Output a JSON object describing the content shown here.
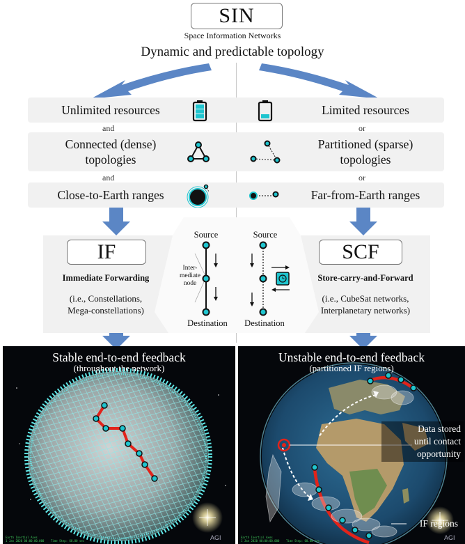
{
  "header": {
    "title": "SIN",
    "subtitle": "Space Information Networks",
    "topology": "Dynamic and predictable topology"
  },
  "conditions": {
    "left": [
      "Unlimited resources",
      "Connected (dense)\ntopologies",
      "Close-to-Earth ranges"
    ],
    "right": [
      "Limited resources",
      "Partitioned (sparse)\ntopologies",
      "Far-from-Earth ranges"
    ],
    "left_conj": [
      "and",
      "and"
    ],
    "right_conj": [
      "or",
      "or"
    ]
  },
  "icons": [
    "battery-full-icon",
    "battery-low-icon",
    "triangle-graph-icon",
    "partitioned-graph-icon",
    "earth-close-icon",
    "earth-far-icon"
  ],
  "if_panel": {
    "acronym": "IF",
    "name": "Immediate Forwarding",
    "examples": "(i.e., Constellations,\nMega-constellations)",
    "source": "Source",
    "intermediate": "Inter-\nmediate\nnode",
    "destination": "Destination"
  },
  "scf_panel": {
    "acronym": "SCF",
    "name": "Store-carry-and-Forward",
    "examples": "(i.e., CubeSat networks,\nInterplanetary networks)",
    "source": "Source",
    "destination": "Destination"
  },
  "left_image": {
    "title": "Stable end-to-end feedback",
    "subtitle": "(throughout the network)",
    "corner_text": "Earth Inertial Axes\n1 Jan 2020 00:00:00.000    Time Step: 60.00 sec",
    "logo": "AGI"
  },
  "right_image": {
    "title": "Unstable end-to-end feedback",
    "subtitle": "(partitioned IF regions)",
    "annotation_store": "Data stored\nuntil contact\nopportunity",
    "annotation_regions": "IF regions",
    "corner_text": "Earth Inertial Axes\n1 Jan 2020 00:00:00.000    Time Step: 60.00 sec",
    "logo": "AGI"
  },
  "colors": {
    "arrow": "#5b86c5",
    "band": "#f1f1f1",
    "node_fill": "#1fc5cf",
    "path_red": "#e2231a",
    "mesh_cyan": "#5fe6e6"
  }
}
